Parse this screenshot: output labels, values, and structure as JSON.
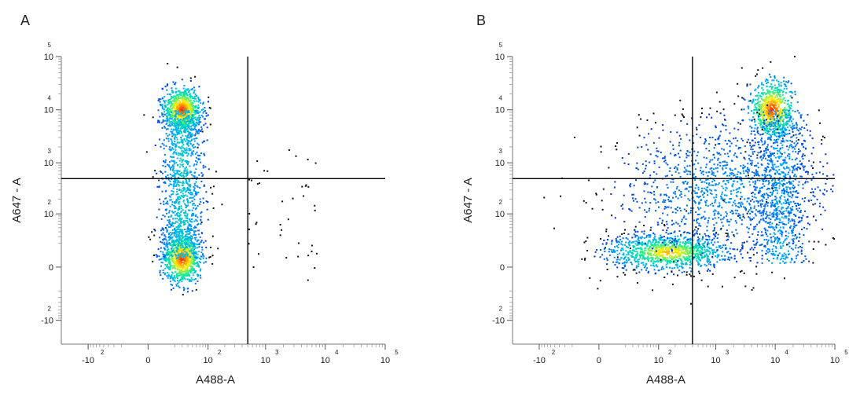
{
  "chart_data": [
    {
      "type": "scatter",
      "panel_label": "A",
      "xlabel": "A488-A",
      "ylabel": "A647   - A",
      "x_scale": "biexponential",
      "y_scale": "biexponential",
      "x_ticks": [
        {
          "base": "-10",
          "exp": "2"
        },
        {
          "base": "0",
          "exp": ""
        },
        {
          "base": "10",
          "exp": "2"
        },
        {
          "base": "10",
          "exp": "3"
        },
        {
          "base": "10",
          "exp": "4"
        },
        {
          "base": "10",
          "exp": "5"
        }
      ],
      "y_ticks": [
        {
          "base": "10",
          "exp": "5"
        },
        {
          "base": "10",
          "exp": "4"
        },
        {
          "base": "10",
          "exp": "3"
        },
        {
          "base": "10",
          "exp": "2"
        },
        {
          "base": "0",
          "exp": ""
        },
        {
          "base": "-10",
          "exp": "2"
        }
      ],
      "gates": {
        "x_threshold": 500,
        "y_threshold": 500
      },
      "populations": [
        {
          "name": "",
          "x_center": 30,
          "y_center": 10000,
          "relative_density": "high"
        },
        {
          "name": "",
          "x_center": 30,
          "y_center": 5,
          "relative_density": "high"
        },
        {
          "name": "",
          "x_range": [
            0,
            100
          ],
          "y_range": [
            100,
            5000
          ],
          "relative_density": "medium"
        }
      ],
      "density_colormap": [
        "#0000cc",
        "#00aaff",
        "#00ffaa",
        "#ffff00",
        "#ff0000"
      ]
    },
    {
      "type": "scatter",
      "panel_label": "B",
      "xlabel": "A488-A",
      "ylabel": "A647   - A",
      "x_scale": "biexponential",
      "y_scale": "biexponential",
      "x_ticks": [
        {
          "base": "-10",
          "exp": "2"
        },
        {
          "base": "0",
          "exp": ""
        },
        {
          "base": "10",
          "exp": "2"
        },
        {
          "base": "10",
          "exp": "3"
        },
        {
          "base": "10",
          "exp": "4"
        },
        {
          "base": "10",
          "exp": "5"
        }
      ],
      "y_ticks": [
        {
          "base": "10",
          "exp": "5"
        },
        {
          "base": "10",
          "exp": "4"
        },
        {
          "base": "10",
          "exp": "3"
        },
        {
          "base": "10",
          "exp": "2"
        },
        {
          "base": "0",
          "exp": ""
        },
        {
          "base": "-10",
          "exp": "2"
        }
      ],
      "gates": {
        "x_threshold": 400,
        "y_threshold": 500
      },
      "populations": [
        {
          "name": "",
          "x_center": 150,
          "y_center": 10,
          "relative_density": "high"
        },
        {
          "name": "",
          "x_center": 8000,
          "y_center": 10000,
          "relative_density": "high"
        },
        {
          "name": "",
          "x_range": [
            500,
            20000
          ],
          "y_range": [
            50,
            3000
          ],
          "relative_density": "medium"
        }
      ],
      "density_colormap": [
        "#0000cc",
        "#00aaff",
        "#00ffaa",
        "#ffff00",
        "#ff0000"
      ]
    }
  ]
}
